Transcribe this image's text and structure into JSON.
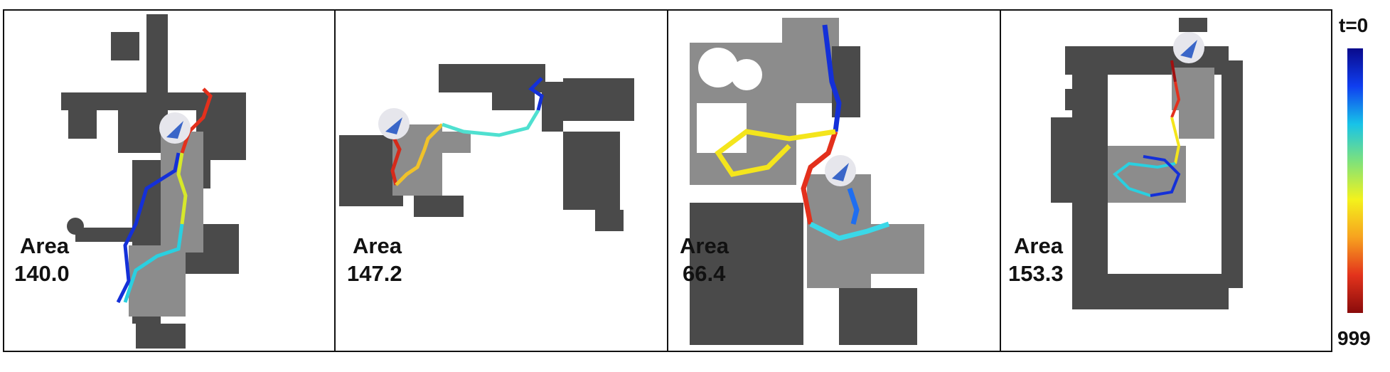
{
  "panels": [
    {
      "area_label": "Area",
      "area_value": "140.0"
    },
    {
      "area_label": "Area",
      "area_value": "147.2"
    },
    {
      "area_label": "Area",
      "area_value": "66.4"
    },
    {
      "area_label": "Area",
      "area_value": "153.3"
    }
  ],
  "colorbar": {
    "top_label": "t=0",
    "bottom_label": "999"
  },
  "colors": {
    "wall": "#4a4a4a",
    "free": "#8c8c8c",
    "agent": "#3a66c8",
    "agent_bg": "#e6e6ec"
  },
  "icons": [
    "agent-arrow-icon"
  ]
}
